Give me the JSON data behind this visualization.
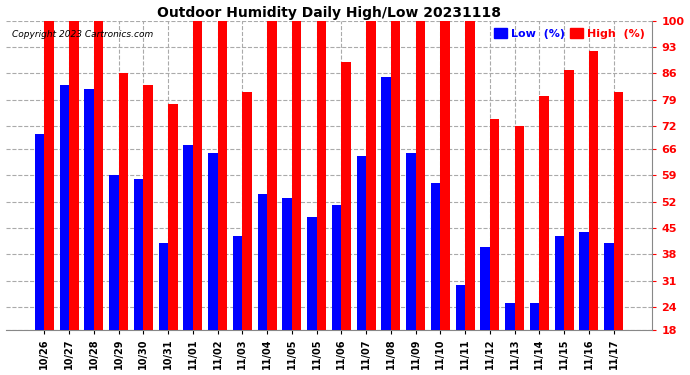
{
  "title": "Outdoor Humidity Daily High/Low 20231118",
  "copyright": "Copyright 2023 Cartronics.com",
  "labels": [
    "10/26",
    "10/27",
    "10/28",
    "10/29",
    "10/30",
    "10/31",
    "11/01",
    "11/02",
    "11/03",
    "11/04",
    "11/05",
    "11/05",
    "11/06",
    "11/07",
    "11/08",
    "11/09",
    "11/10",
    "11/11",
    "11/12",
    "11/13",
    "11/14",
    "11/15",
    "11/16",
    "11/17"
  ],
  "high_values": [
    100,
    100,
    100,
    86,
    83,
    78,
    100,
    100,
    81,
    100,
    100,
    100,
    89,
    100,
    100,
    100,
    100,
    100,
    74,
    72,
    80,
    87,
    92,
    81
  ],
  "low_values": [
    70,
    83,
    82,
    59,
    58,
    41,
    67,
    65,
    43,
    54,
    53,
    48,
    51,
    64,
    85,
    65,
    57,
    30,
    40,
    25,
    25,
    43,
    44,
    41
  ],
  "high_color": "#FF0000",
  "low_color": "#0000FF",
  "bg_color": "#FFFFFF",
  "grid_color": "#AAAAAA",
  "yticks": [
    18,
    24,
    31,
    38,
    45,
    52,
    59,
    66,
    72,
    79,
    86,
    93,
    100
  ],
  "ymin": 18,
  "ymax": 100,
  "legend_low_label": "Low  (%)",
  "legend_high_label": "High  (%)"
}
